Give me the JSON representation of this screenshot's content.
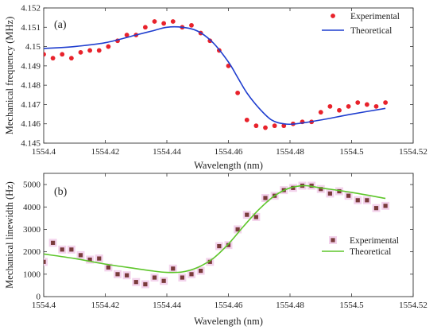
{
  "chart_data": [
    {
      "type": "scatter",
      "panel_label": "(a)",
      "xlabel": "Wavelength (nm)",
      "ylabel": "Mechanical frequency (MHz)",
      "xlim": [
        1554.4,
        1554.52
      ],
      "ylim": [
        4.145,
        4.152
      ],
      "xticks": [
        1554.4,
        1554.42,
        1554.44,
        1554.46,
        1554.48,
        1554.5,
        1554.52
      ],
      "xtick_labels": [
        "1554.4",
        "1554.42",
        "1554.44",
        "1554.46",
        "1554.48",
        "1554.5",
        "1554.52"
      ],
      "yticks": [
        4.145,
        4.146,
        4.147,
        4.148,
        4.149,
        4.15,
        4.151,
        4.152
      ],
      "ytick_labels": [
        "4.145",
        "4.146",
        "4.147",
        "4.148",
        "4.149",
        "4.15",
        "4.151",
        "4.152"
      ],
      "legend_position": "top-right",
      "series": [
        {
          "name": "Experimental",
          "style": "dots",
          "color": "#e8222b",
          "x": [
            1554.4,
            1554.403,
            1554.406,
            1554.409,
            1554.412,
            1554.415,
            1554.418,
            1554.421,
            1554.424,
            1554.427,
            1554.43,
            1554.433,
            1554.436,
            1554.439,
            1554.442,
            1554.445,
            1554.448,
            1554.451,
            1554.454,
            1554.457,
            1554.46,
            1554.463,
            1554.466,
            1554.469,
            1554.472,
            1554.475,
            1554.478,
            1554.481,
            1554.484,
            1554.487,
            1554.49,
            1554.493,
            1554.496,
            1554.499,
            1554.502,
            1554.505,
            1554.508,
            1554.511
          ],
          "y": [
            4.1496,
            4.1494,
            4.1496,
            4.1494,
            4.1497,
            4.1498,
            4.1498,
            4.15,
            4.1503,
            4.1506,
            4.1506,
            4.151,
            4.1513,
            4.1512,
            4.1513,
            4.151,
            4.1511,
            4.1507,
            4.1503,
            4.1498,
            4.149,
            4.1476,
            4.1462,
            4.1459,
            4.1458,
            4.1459,
            4.1459,
            4.146,
            4.1461,
            4.1461,
            4.1466,
            4.1469,
            4.1467,
            4.1469,
            4.1471,
            4.147,
            4.1469,
            4.1471
          ]
        },
        {
          "name": "Theoretical",
          "style": "line",
          "color": "#1f3ecf",
          "x": [
            1554.4,
            1554.41,
            1554.42,
            1554.43,
            1554.435,
            1554.44,
            1554.445,
            1554.45,
            1554.455,
            1554.46,
            1554.463,
            1554.466,
            1554.47,
            1554.474,
            1554.478,
            1554.482,
            1554.49,
            1554.5,
            1554.511
          ],
          "y": [
            4.1499,
            4.15,
            4.1502,
            4.1506,
            4.1508,
            4.151,
            4.151,
            4.1508,
            4.1502,
            4.1492,
            4.1484,
            4.1476,
            4.1468,
            4.1462,
            4.146,
            4.146,
            4.1462,
            4.1465,
            4.1468
          ]
        }
      ]
    },
    {
      "type": "scatter",
      "panel_label": "(b)",
      "xlabel": "Wavelength (nm)",
      "ylabel": "Mechanical linewidth (Hz)",
      "xlim": [
        1554.4,
        1554.52
      ],
      "ylim": [
        0,
        5500
      ],
      "xticks": [
        1554.4,
        1554.42,
        1554.44,
        1554.46,
        1554.48,
        1554.5,
        1554.52
      ],
      "xtick_labels": [
        "1554.4",
        "1554.42",
        "1554.44",
        "1554.46",
        "1554.48",
        "1554.5",
        "1554.52"
      ],
      "yticks": [
        0,
        1000,
        2000,
        3000,
        4000,
        5000
      ],
      "ytick_labels": [
        "0",
        "1000",
        "2000",
        "3000",
        "4000",
        "5000"
      ],
      "legend_position": "right",
      "series": [
        {
          "name": "Experimental",
          "style": "squares",
          "color": "#7a3b3b",
          "halo_color": "#f3d3ec",
          "x": [
            1554.4,
            1554.403,
            1554.406,
            1554.409,
            1554.412,
            1554.415,
            1554.418,
            1554.421,
            1554.424,
            1554.427,
            1554.43,
            1554.433,
            1554.436,
            1554.439,
            1554.442,
            1554.445,
            1554.448,
            1554.451,
            1554.454,
            1554.457,
            1554.46,
            1554.463,
            1554.466,
            1554.469,
            1554.472,
            1554.475,
            1554.478,
            1554.481,
            1554.484,
            1554.487,
            1554.49,
            1554.493,
            1554.496,
            1554.499,
            1554.502,
            1554.505,
            1554.508,
            1554.511
          ],
          "y": [
            1550,
            2400,
            2100,
            2100,
            1850,
            1650,
            1700,
            1300,
            1000,
            950,
            650,
            550,
            850,
            700,
            1250,
            850,
            1000,
            1150,
            1550,
            2250,
            2300,
            3000,
            3650,
            3550,
            4400,
            4500,
            4750,
            4850,
            4950,
            4950,
            4800,
            4600,
            4700,
            4500,
            4300,
            4300,
            3950,
            4050
          ]
        },
        {
          "name": "Theoretical",
          "style": "line",
          "color": "#5ec62b",
          "x": [
            1554.4,
            1554.41,
            1554.42,
            1554.43,
            1554.435,
            1554.44,
            1554.445,
            1554.45,
            1554.455,
            1554.46,
            1554.465,
            1554.47,
            1554.475,
            1554.48,
            1554.485,
            1554.49,
            1554.5,
            1554.511
          ],
          "y": [
            1900,
            1700,
            1450,
            1250,
            1150,
            1080,
            1100,
            1300,
            1700,
            2350,
            3150,
            3900,
            4500,
            4850,
            4950,
            4850,
            4650,
            4380
          ]
        }
      ]
    }
  ]
}
